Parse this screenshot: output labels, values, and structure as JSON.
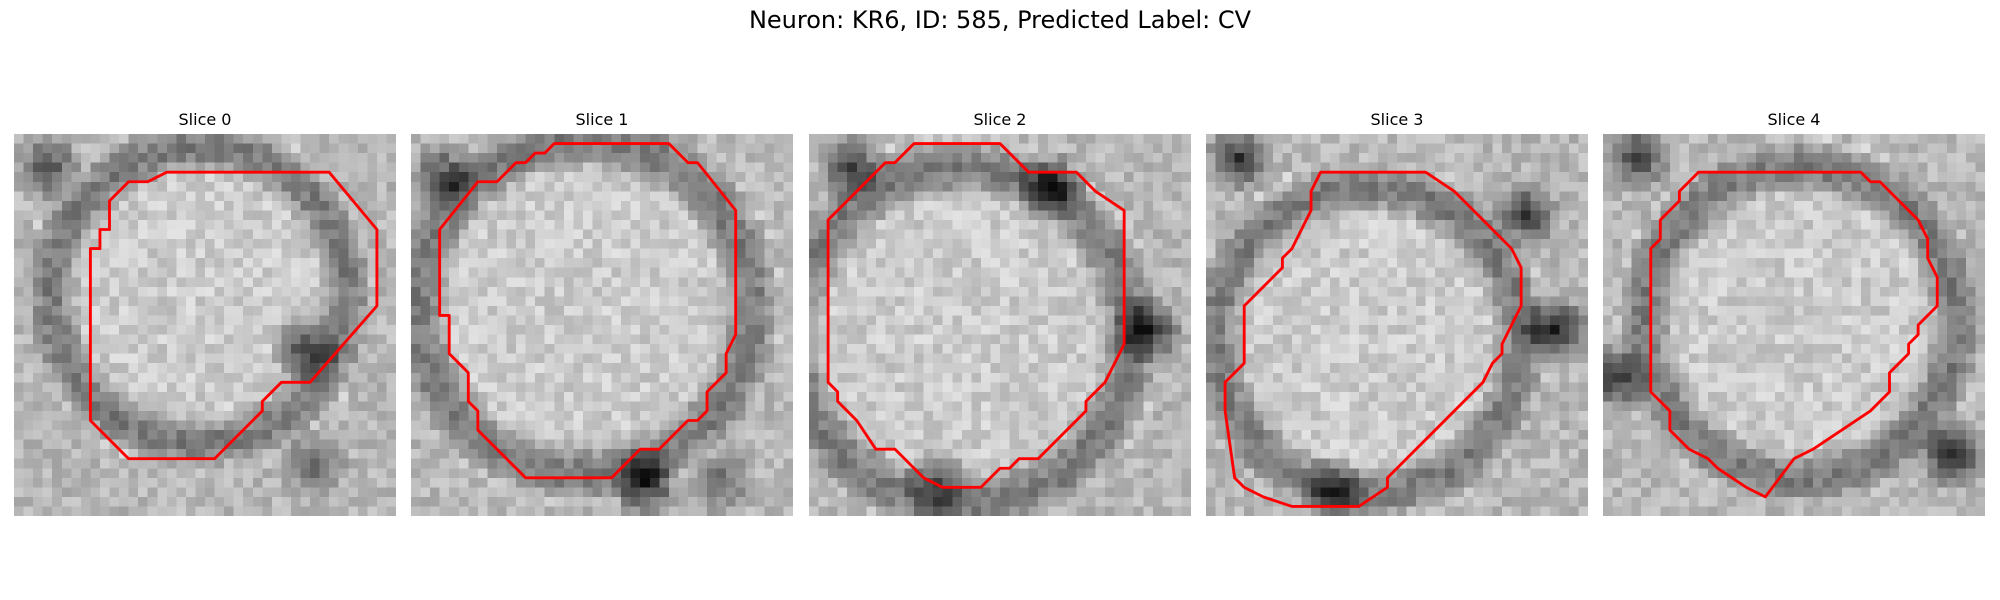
{
  "figure": {
    "title": "Neuron: KR6, ID: 585, Predicted Label: CV"
  },
  "panels": [
    {
      "title": "Slice 0",
      "dark_spots": [
        [
          31,
          34,
          0.35
        ],
        [
          3,
          3,
          0.45
        ],
        [
          30,
          22,
          0.55
        ]
      ],
      "contour": [
        [
          16,
          4
        ],
        [
          33,
          4
        ],
        [
          38,
          10
        ],
        [
          38,
          18
        ],
        [
          31,
          26
        ],
        [
          28,
          26
        ],
        [
          26,
          28
        ],
        [
          26,
          29
        ],
        [
          21,
          34
        ],
        [
          12,
          34
        ],
        [
          8,
          30
        ],
        [
          8,
          12
        ],
        [
          9,
          12
        ],
        [
          9,
          10
        ],
        [
          10,
          10
        ],
        [
          10,
          7
        ],
        [
          12,
          5
        ],
        [
          14,
          5
        ]
      ]
    },
    {
      "title": "Slice 1",
      "dark_spots": [
        [
          32,
          36,
          0.32
        ],
        [
          24,
          36,
          0.6
        ],
        [
          3,
          4,
          0.5
        ]
      ],
      "contour": [
        [
          15,
          1
        ],
        [
          27,
          1
        ],
        [
          29,
          3
        ],
        [
          30,
          3
        ],
        [
          34,
          8
        ],
        [
          34,
          21
        ],
        [
          33,
          23
        ],
        [
          33,
          25
        ],
        [
          31,
          27
        ],
        [
          31,
          29
        ],
        [
          30,
          30
        ],
        [
          29,
          30
        ],
        [
          26,
          33
        ],
        [
          24,
          33
        ],
        [
          21,
          36
        ],
        [
          12,
          36
        ],
        [
          7,
          31
        ],
        [
          7,
          29
        ],
        [
          6,
          28
        ],
        [
          6,
          25
        ],
        [
          4,
          23
        ],
        [
          4,
          19
        ],
        [
          3,
          19
        ],
        [
          3,
          10
        ],
        [
          7,
          5
        ],
        [
          9,
          5
        ],
        [
          11,
          3
        ],
        [
          12,
          3
        ],
        [
          13,
          2
        ],
        [
          14,
          2
        ]
      ]
    },
    {
      "title": "Slice 2",
      "dark_spots": [
        [
          25,
          5,
          0.5
        ],
        [
          4,
          3,
          0.45
        ],
        [
          13,
          36,
          0.4
        ],
        [
          35,
          20,
          0.6
        ]
      ],
      "contour": [
        [
          11,
          1
        ],
        [
          20,
          1
        ],
        [
          23,
          4
        ],
        [
          28,
          4
        ],
        [
          30,
          6
        ],
        [
          33,
          8
        ],
        [
          33,
          22
        ],
        [
          31,
          26
        ],
        [
          29,
          28
        ],
        [
          29,
          29
        ],
        [
          25,
          33
        ],
        [
          24,
          34
        ],
        [
          22,
          34
        ],
        [
          21,
          35
        ],
        [
          20,
          35
        ],
        [
          18,
          37
        ],
        [
          14,
          37
        ],
        [
          12,
          36
        ],
        [
          11,
          35
        ],
        [
          9,
          33
        ],
        [
          7,
          33
        ],
        [
          5,
          30
        ],
        [
          3,
          28
        ],
        [
          3,
          27
        ],
        [
          2,
          26
        ],
        [
          2,
          9
        ],
        [
          4,
          7
        ],
        [
          5,
          6
        ],
        [
          6,
          5
        ],
        [
          8,
          3
        ],
        [
          9,
          3
        ]
      ]
    },
    {
      "title": "Slice 3",
      "dark_spots": [
        [
          3,
          2,
          0.5
        ],
        [
          33,
          8,
          0.55
        ],
        [
          13,
          37,
          0.45
        ],
        [
          36,
          20,
          0.65
        ]
      ],
      "contour": [
        [
          12,
          4
        ],
        [
          23,
          4
        ],
        [
          26,
          6
        ],
        [
          28,
          8
        ],
        [
          29,
          9
        ],
        [
          32,
          12
        ],
        [
          33,
          14
        ],
        [
          33,
          18
        ],
        [
          32,
          20
        ],
        [
          31,
          22
        ],
        [
          31,
          23
        ],
        [
          30,
          24
        ],
        [
          29,
          26
        ],
        [
          27,
          28
        ],
        [
          26,
          29
        ],
        [
          24,
          31
        ],
        [
          22,
          33
        ],
        [
          19,
          36
        ],
        [
          19,
          37
        ],
        [
          16,
          39
        ],
        [
          14,
          39
        ],
        [
          9,
          39
        ],
        [
          6,
          38
        ],
        [
          4,
          37
        ],
        [
          3,
          36
        ],
        [
          2,
          29
        ],
        [
          2,
          26
        ],
        [
          4,
          24
        ],
        [
          4,
          18
        ],
        [
          5,
          17
        ],
        [
          6,
          16
        ],
        [
          7,
          15
        ],
        [
          8,
          14
        ],
        [
          8,
          13
        ],
        [
          9,
          12
        ],
        [
          10,
          10
        ],
        [
          11,
          8
        ],
        [
          11,
          6
        ]
      ]
    },
    {
      "title": "Slice 4",
      "dark_spots": [
        [
          3,
          2,
          0.5
        ],
        [
          1,
          25,
          0.55
        ],
        [
          36,
          33,
          0.6
        ]
      ],
      "contour": [
        [
          10,
          4
        ],
        [
          27,
          4
        ],
        [
          28,
          5
        ],
        [
          29,
          5
        ],
        [
          31,
          7
        ],
        [
          33,
          9
        ],
        [
          34,
          11
        ],
        [
          34,
          13
        ],
        [
          35,
          15
        ],
        [
          35,
          18
        ],
        [
          34,
          19
        ],
        [
          33,
          20
        ],
        [
          33,
          21
        ],
        [
          32,
          22
        ],
        [
          32,
          23
        ],
        [
          31,
          24
        ],
        [
          30,
          25
        ],
        [
          30,
          27
        ],
        [
          28,
          29
        ],
        [
          25,
          31
        ],
        [
          22,
          33
        ],
        [
          20,
          34
        ],
        [
          17,
          38
        ],
        [
          15,
          37
        ],
        [
          12,
          35
        ],
        [
          11,
          34
        ],
        [
          9,
          33
        ],
        [
          7,
          31
        ],
        [
          7,
          29
        ],
        [
          6,
          28
        ],
        [
          5,
          27
        ],
        [
          5,
          12
        ],
        [
          6,
          11
        ],
        [
          6,
          9
        ],
        [
          7,
          8
        ],
        [
          8,
          7
        ],
        [
          8,
          6
        ],
        [
          9,
          5
        ]
      ]
    }
  ],
  "colors": {
    "contour": "#ff0000"
  }
}
